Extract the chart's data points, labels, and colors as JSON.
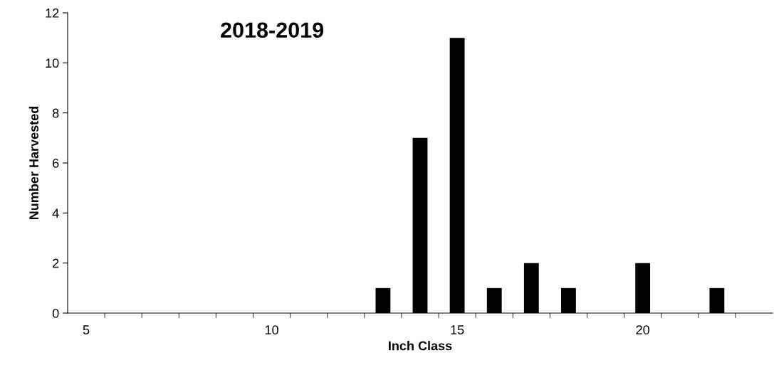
{
  "chart_data": {
    "type": "bar",
    "title": "2018-2019",
    "xlabel": "Inch Class",
    "ylabel": "Number Harvested",
    "categories": [
      "5",
      null,
      null,
      null,
      null,
      "10",
      null,
      null,
      null,
      null,
      "15",
      null,
      null,
      null,
      null,
      "20",
      null,
      null,
      null
    ],
    "values": [
      0,
      0,
      0,
      0,
      0,
      0,
      0,
      0,
      1,
      7,
      11,
      1,
      2,
      1,
      0,
      2,
      0,
      1,
      0
    ],
    "color": "#000000",
    "ylim": [
      0,
      12
    ],
    "yticks": [
      0,
      2,
      4,
      6,
      8,
      10,
      12
    ],
    "grid": false,
    "legend": false
  }
}
